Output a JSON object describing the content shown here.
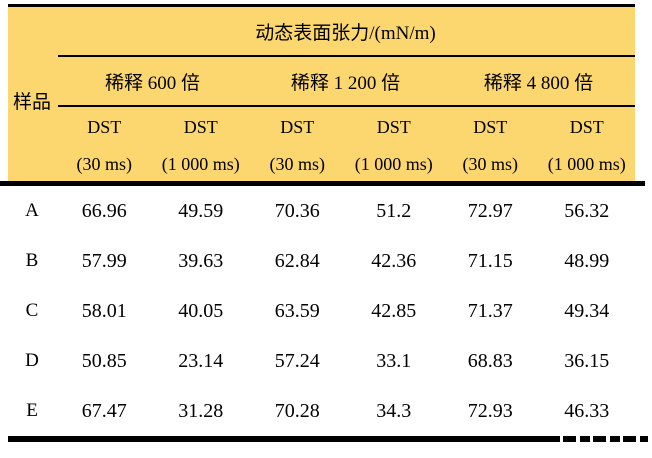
{
  "table": {
    "title_header": "动态表面张力/(mN/m)",
    "corner_header": "样品",
    "group_headers": [
      "稀释 600 倍",
      "稀释 1 200 倍",
      "稀释 4 800 倍"
    ],
    "sub_headers": [
      {
        "line1": "DST",
        "line2": "(30 ms)"
      },
      {
        "line1": "DST",
        "line2": "(1 000 ms)"
      },
      {
        "line1": "DST",
        "line2": "(30 ms)"
      },
      {
        "line1": "DST",
        "line2": "(1 000 ms)"
      },
      {
        "line1": "DST",
        "line2": "(30 ms)"
      },
      {
        "line1": "DST",
        "line2": "(1 000 ms)"
      }
    ],
    "rows": [
      {
        "sample": "A",
        "values": [
          "66.96",
          "49.59",
          "70.36",
          "51.2",
          "72.97",
          "56.32"
        ]
      },
      {
        "sample": "B",
        "values": [
          "57.99",
          "39.63",
          "62.84",
          "42.36",
          "71.15",
          "48.99"
        ]
      },
      {
        "sample": "C",
        "values": [
          "58.01",
          "40.05",
          "63.59",
          "42.85",
          "71.37",
          "49.34"
        ]
      },
      {
        "sample": "D",
        "values": [
          "50.85",
          "23.14",
          "57.24",
          "33.1",
          "68.83",
          "36.15"
        ]
      },
      {
        "sample": "E",
        "values": [
          "67.47",
          "31.28",
          "70.28",
          "34.3",
          "72.93",
          "46.33"
        ]
      }
    ],
    "colors": {
      "header_bg": "#FCD770",
      "rule": "#000000",
      "text": "#000000",
      "page_bg": "#FFFFFF"
    }
  },
  "chart_data": {
    "type": "table",
    "title": "动态表面张力/(mN/m)",
    "columns": [
      "样品",
      "稀释 600 倍 DST (30 ms)",
      "稀释 600 倍 DST (1 000 ms)",
      "稀释 1 200 倍 DST (30 ms)",
      "稀释 1 200 倍 DST (1 000 ms)",
      "稀释 4 800 倍 DST (30 ms)",
      "稀释 4 800 倍 DST (1 000 ms)"
    ],
    "rows": [
      [
        "A",
        66.96,
        49.59,
        70.36,
        51.2,
        72.97,
        56.32
      ],
      [
        "B",
        57.99,
        39.63,
        62.84,
        42.36,
        71.15,
        48.99
      ],
      [
        "C",
        58.01,
        40.05,
        63.59,
        42.85,
        71.37,
        49.34
      ],
      [
        "D",
        50.85,
        23.14,
        57.24,
        33.1,
        68.83,
        36.15
      ],
      [
        "E",
        67.47,
        31.28,
        70.28,
        34.3,
        72.93,
        46.33
      ]
    ]
  }
}
